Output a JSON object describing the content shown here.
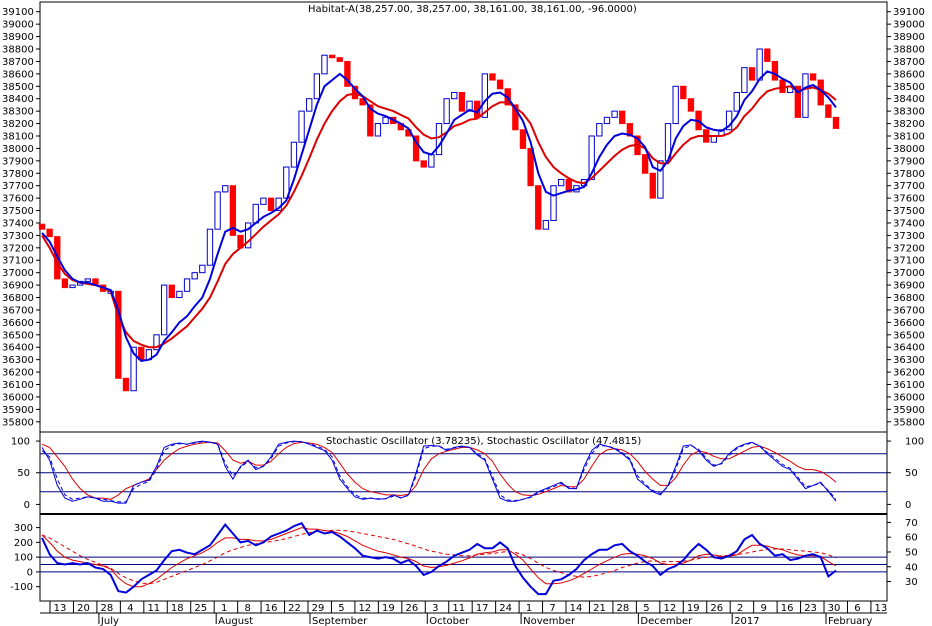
{
  "chart_data": [
    {
      "type": "candlestick",
      "title": "Habitat-A(38,257.00, 38,257.00, 38,161.00, 38,161.00, -96.0000)",
      "ylim": [
        35750,
        39130
      ],
      "yticks": [
        35800,
        35900,
        36000,
        36100,
        36200,
        36300,
        36400,
        36500,
        36600,
        36700,
        36800,
        36900,
        37000,
        37100,
        37200,
        37300,
        37400,
        37500,
        37600,
        37700,
        37800,
        37900,
        38000,
        38100,
        38200,
        38300,
        38400,
        38500,
        38600,
        38700,
        38800,
        38900,
        39000,
        39100
      ],
      "closes": [
        37350,
        37290,
        36950,
        36880,
        36900,
        36930,
        36950,
        36900,
        36850,
        36850,
        36150,
        36050,
        36400,
        36300,
        36380,
        36500,
        36900,
        36800,
        36850,
        36950,
        37000,
        37060,
        37350,
        37650,
        37700,
        37300,
        37200,
        37400,
        37550,
        37600,
        37500,
        37600,
        37850,
        38050,
        38300,
        38400,
        38600,
        38750,
        38730,
        38700,
        38500,
        38400,
        38350,
        38100,
        38200,
        38250,
        38200,
        38150,
        38100,
        37900,
        37850,
        37950,
        38200,
        38400,
        38450,
        38300,
        38380,
        38250,
        38600,
        38550,
        38480,
        38350,
        38150,
        38000,
        37700,
        37350,
        37420,
        37700,
        37750,
        37650,
        37700,
        37750,
        38100,
        38200,
        38250,
        38300,
        38200,
        38100,
        37950,
        37800,
        37600,
        37900,
        38200,
        38500,
        38400,
        38300,
        38150,
        38050,
        38100,
        38150,
        38300,
        38450,
        38650,
        38550,
        38800,
        38700,
        38550,
        38450,
        38500,
        38250,
        38600,
        38550,
        38350,
        38250,
        38161
      ],
      "ema_fast": [
        37320,
        37250,
        37130,
        37020,
        36950,
        36920,
        36920,
        36900,
        36880,
        36860,
        36700,
        36480,
        36350,
        36290,
        36300,
        36340,
        36450,
        36520,
        36600,
        36650,
        36730,
        36800,
        36950,
        37150,
        37330,
        37360,
        37330,
        37350,
        37400,
        37450,
        37480,
        37520,
        37580,
        37750,
        37950,
        38150,
        38350,
        38500,
        38550,
        38600,
        38550,
        38480,
        38420,
        38320,
        38280,
        38260,
        38230,
        38200,
        38160,
        38050,
        37970,
        37950,
        38020,
        38120,
        38230,
        38270,
        38310,
        38290,
        38380,
        38440,
        38450,
        38410,
        38320,
        38220,
        38050,
        37800,
        37650,
        37620,
        37640,
        37660,
        37670,
        37690,
        37800,
        37930,
        38030,
        38100,
        38120,
        38110,
        38080,
        38010,
        37850,
        37820,
        37900,
        38080,
        38180,
        38230,
        38220,
        38170,
        38150,
        38140,
        38180,
        38260,
        38390,
        38460,
        38560,
        38620,
        38600,
        38560,
        38530,
        38450,
        38490,
        38510,
        38470,
        38410,
        38330
      ],
      "ema_slow": [
        37300,
        37200,
        37080,
        36990,
        36940,
        36920,
        36910,
        36900,
        36880,
        36850,
        36650,
        36520,
        36450,
        36420,
        36400,
        36400,
        36430,
        36470,
        36520,
        36570,
        36640,
        36710,
        36800,
        36930,
        37070,
        37150,
        37200,
        37250,
        37310,
        37370,
        37420,
        37470,
        37540,
        37650,
        37780,
        37920,
        38070,
        38200,
        38300,
        38380,
        38430,
        38440,
        38420,
        38380,
        38340,
        38320,
        38300,
        38270,
        38240,
        38170,
        38110,
        38080,
        38090,
        38130,
        38180,
        38200,
        38230,
        38240,
        38290,
        38340,
        38370,
        38370,
        38330,
        38280,
        38200,
        38050,
        37930,
        37850,
        37800,
        37760,
        37730,
        37720,
        37760,
        37820,
        37880,
        37940,
        37990,
        38020,
        38030,
        38000,
        37920,
        37880,
        37880,
        37960,
        38030,
        38080,
        38100,
        38100,
        38100,
        38100,
        38120,
        38170,
        38260,
        38320,
        38400,
        38460,
        38480,
        38490,
        38500,
        38460,
        38480,
        38490,
        38470,
        38440,
        38390
      ]
    },
    {
      "type": "line",
      "title": "Stochastic Oscillator (3.78235), Stochastic Oscillator (47.4815)",
      "ylim": [
        -12,
        108
      ],
      "yticks": [
        0,
        50,
        100
      ],
      "hlines": [
        20,
        50,
        80
      ],
      "k": [
        90,
        70,
        30,
        10,
        5,
        8,
        12,
        10,
        5,
        5,
        2,
        2,
        30,
        35,
        38,
        60,
        90,
        95,
        97,
        95,
        98,
        100,
        98,
        95,
        60,
        40,
        60,
        70,
        55,
        60,
        75,
        95,
        98,
        100,
        99,
        95,
        90,
        85,
        70,
        40,
        25,
        12,
        8,
        10,
        8,
        9,
        15,
        10,
        15,
        50,
        92,
        93,
        92,
        85,
        90,
        92,
        90,
        78,
        70,
        40,
        10,
        5,
        5,
        8,
        12,
        20,
        25,
        30,
        35,
        25,
        25,
        60,
        85,
        95,
        92,
        88,
        80,
        70,
        40,
        30,
        20,
        15,
        30,
        60,
        92,
        94,
        85,
        70,
        60,
        65,
        80,
        90,
        95,
        98,
        92,
        80,
        70,
        60,
        55,
        40,
        25,
        30,
        35,
        20,
        5
      ],
      "k_dash": [
        85,
        75,
        40,
        15,
        8,
        10,
        12,
        10,
        8,
        6,
        4,
        4,
        25,
        32,
        36,
        55,
        85,
        93,
        96,
        95,
        97,
        99,
        98,
        96,
        65,
        45,
        58,
        68,
        58,
        60,
        72,
        92,
        97,
        99,
        99,
        96,
        92,
        87,
        75,
        45,
        28,
        15,
        10,
        10,
        9,
        9,
        13,
        11,
        14,
        45,
        88,
        92,
        92,
        87,
        89,
        91,
        90,
        80,
        72,
        45,
        15,
        7,
        6,
        8,
        11,
        18,
        23,
        28,
        33,
        27,
        25,
        55,
        80,
        93,
        92,
        89,
        82,
        72,
        45,
        32,
        22,
        17,
        28,
        55,
        88,
        93,
        87,
        73,
        62,
        64,
        77,
        88,
        94,
        97,
        93,
        82,
        73,
        63,
        57,
        43,
        28,
        30,
        33,
        22,
        8
      ],
      "d": [
        95,
        90,
        75,
        60,
        40,
        25,
        15,
        10,
        10,
        8,
        15,
        25,
        30,
        35,
        40,
        55,
        70,
        80,
        88,
        92,
        95,
        97,
        98,
        97,
        85,
        70,
        65,
        68,
        62,
        62,
        68,
        80,
        90,
        96,
        98,
        97,
        95,
        90,
        82,
        65,
        48,
        35,
        25,
        20,
        18,
        15,
        15,
        14,
        16,
        30,
        55,
        72,
        80,
        84,
        87,
        90,
        90,
        86,
        80,
        68,
        48,
        32,
        20,
        15,
        14,
        16,
        20,
        25,
        30,
        28,
        28,
        40,
        60,
        78,
        86,
        88,
        86,
        80,
        68,
        52,
        40,
        30,
        30,
        42,
        62,
        78,
        84,
        82,
        76,
        72,
        72,
        78,
        84,
        90,
        92,
        88,
        82,
        75,
        68,
        60,
        55,
        55,
        52,
        45,
        35
      ]
    },
    {
      "type": "line",
      "ylim": [
        -190,
        365
      ],
      "yticks": [
        -100,
        0,
        100,
        200,
        300
      ],
      "yticks_right": [
        30,
        40,
        50,
        60,
        70
      ],
      "hlines": [
        0,
        50,
        100
      ],
      "osc": [
        230,
        120,
        60,
        50,
        60,
        50,
        60,
        30,
        20,
        -20,
        -130,
        -140,
        -100,
        -50,
        -20,
        10,
        80,
        140,
        150,
        130,
        120,
        150,
        180,
        250,
        320,
        260,
        200,
        210,
        180,
        200,
        240,
        260,
        280,
        310,
        330,
        250,
        280,
        260,
        270,
        240,
        200,
        160,
        110,
        100,
        90,
        100,
        90,
        60,
        80,
        40,
        -20,
        0,
        40,
        70,
        110,
        130,
        150,
        190,
        160,
        160,
        200,
        160,
        40,
        -40,
        -100,
        -150,
        -150,
        -60,
        -50,
        -20,
        20,
        80,
        120,
        150,
        150,
        180,
        190,
        140,
        110,
        70,
        40,
        -20,
        20,
        40,
        80,
        140,
        190,
        150,
        100,
        90,
        110,
        140,
        220,
        250,
        190,
        160,
        110,
        120,
        80,
        90,
        110,
        120,
        100,
        -30,
        10
      ],
      "sig": [
        250,
        200,
        140,
        100,
        80,
        70,
        60,
        50,
        40,
        20,
        -40,
        -80,
        -100,
        -100,
        -80,
        -50,
        -10,
        30,
        60,
        90,
        110,
        130,
        160,
        200,
        230,
        230,
        220,
        220,
        210,
        210,
        220,
        240,
        260,
        280,
        300,
        290,
        290,
        280,
        275,
        260,
        240,
        210,
        180,
        160,
        140,
        130,
        115,
        100,
        90,
        70,
        40,
        30,
        35,
        45,
        60,
        75,
        95,
        120,
        130,
        135,
        150,
        150,
        120,
        80,
        20,
        -40,
        -80,
        -80,
        -75,
        -60,
        -40,
        -10,
        20,
        50,
        75,
        100,
        120,
        125,
        120,
        110,
        90,
        60,
        50,
        50,
        60,
        80,
        110,
        120,
        115,
        105,
        105,
        115,
        150,
        180,
        180,
        175,
        160,
        150,
        130,
        115,
        110,
        110,
        105,
        70,
        40
      ],
      "sig2": [
        250,
        230,
        200,
        170,
        140,
        110,
        85,
        65,
        45,
        25,
        -10,
        -40,
        -60,
        -75,
        -80,
        -70,
        -50,
        -30,
        -10,
        10,
        30,
        50,
        75,
        100,
        130,
        150,
        165,
        180,
        190,
        200,
        205,
        215,
        225,
        240,
        255,
        265,
        275,
        280,
        282,
        282,
        278,
        270,
        260,
        250,
        240,
        230,
        220,
        205,
        190,
        175,
        155,
        140,
        130,
        120,
        115,
        110,
        110,
        115,
        120,
        125,
        132,
        138,
        132,
        115,
        90,
        60,
        30,
        10,
        -5,
        -20,
        -30,
        -35,
        -30,
        -20,
        -5,
        10,
        30,
        45,
        60,
        70,
        75,
        70,
        70,
        70,
        72,
        80,
        90,
        100,
        105,
        110,
        112,
        118,
        125,
        135,
        145,
        152,
        155,
        155,
        150,
        145,
        140,
        135,
        130,
        115,
        95
      ]
    }
  ],
  "xaxis": {
    "day_ticks": [
      "13",
      "20",
      "28",
      "4",
      "11",
      "18",
      "25",
      "1",
      "8",
      "16",
      "22",
      "29",
      "5",
      "12",
      "19",
      "26",
      "3",
      "11",
      "17",
      "24",
      "1",
      "7",
      "14",
      "21",
      "28",
      "5",
      "12",
      "19",
      "26",
      "2",
      "9",
      "16",
      "23",
      "30",
      "6",
      "13"
    ],
    "months": [
      "July",
      "August",
      "September",
      "October",
      "November",
      "December",
      "2017",
      "February"
    ]
  },
  "colors": {
    "up_candle": "#0000cc",
    "down_candle": "#ff0000",
    "fast_line": "#0000dd",
    "slow_line": "#dd0000",
    "grid_line": "#000080"
  }
}
